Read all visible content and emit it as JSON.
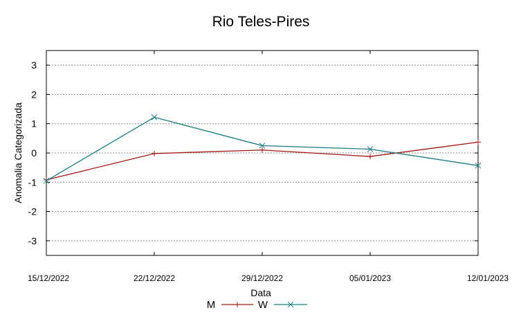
{
  "chart_data": {
    "type": "line",
    "title": "Rio Teles-Pires",
    "xlabel": "Data",
    "ylabel": "Anomalia Categorizada",
    "categories": [
      "15/12/2022",
      "22/12/2022",
      "29/12/2022",
      "05/01/2023",
      "12/01/2023"
    ],
    "ylim": [
      -3.5,
      3.5
    ],
    "yticks": [
      -3,
      -2,
      -1,
      0,
      1,
      2,
      3
    ],
    "grid": true,
    "legend_position": "bottom",
    "series": [
      {
        "name": "M",
        "values": [
          -0.92,
          -0.02,
          0.1,
          -0.12,
          0.37
        ],
        "color": "#a31515",
        "marker": "plus"
      },
      {
        "name": "W",
        "values": [
          -0.95,
          1.22,
          0.25,
          0.13,
          -0.43
        ],
        "color": "#1a7a80",
        "marker": "cross"
      }
    ]
  }
}
